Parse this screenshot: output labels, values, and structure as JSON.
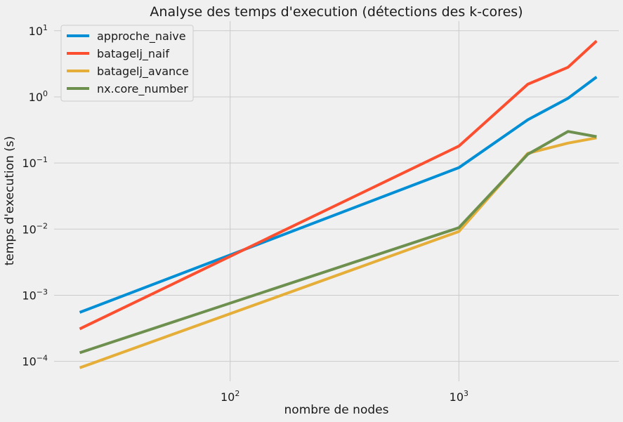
{
  "chart_data": {
    "type": "line",
    "title": "Analyse des temps d'execution (détections des k-cores)",
    "xlabel": "nombre de nodes",
    "ylabel": "temps d'execution (s)",
    "xscale": "log",
    "yscale": "log",
    "xlim": [
      17,
      5000
    ],
    "ylim": [
      5e-05,
      14
    ],
    "x_ticks": [
      {
        "value": 100,
        "base": "10",
        "exp": "2"
      },
      {
        "value": 1000,
        "base": "10",
        "exp": "3"
      }
    ],
    "y_ticks": [
      {
        "value": 0.0001,
        "base": "10",
        "exp": "−4"
      },
      {
        "value": 0.001,
        "base": "10",
        "exp": "−3"
      },
      {
        "value": 0.01,
        "base": "10",
        "exp": "−2"
      },
      {
        "value": 0.1,
        "base": "10",
        "exp": "−1"
      },
      {
        "value": 1,
        "base": "10",
        "exp": "0"
      },
      {
        "value": 10,
        "base": "10",
        "exp": "1"
      }
    ],
    "grid": true,
    "legend_position": "top-left",
    "x": [
      22,
      1000,
      2000,
      3000,
      4000
    ],
    "series": [
      {
        "name": "approche_naive",
        "color": "#008fd5",
        "values": [
          0.00055,
          0.085,
          0.45,
          0.95,
          2.0
        ]
      },
      {
        "name": "batagelj_naif",
        "color": "#fc4f30",
        "values": [
          0.00031,
          0.18,
          1.55,
          2.8,
          7.0
        ]
      },
      {
        "name": "batagelj_avance",
        "color": "#e5ae38",
        "values": [
          8e-05,
          0.0092,
          0.14,
          0.2,
          0.24
        ]
      },
      {
        "name": "nx.core_number",
        "color": "#6d904f",
        "values": [
          0.000135,
          0.0105,
          0.135,
          0.3,
          0.25
        ]
      }
    ]
  }
}
